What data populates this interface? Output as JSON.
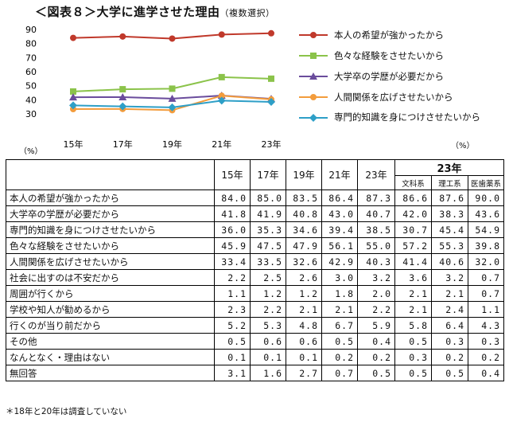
{
  "title": "＜図表８＞大学に進学させた理由",
  "title_note": "（複数選択）",
  "pct_left": "（%）",
  "pct_right": "（%）",
  "footnote": "＊18年と20年は調査していない",
  "chart_data": {
    "type": "line",
    "x": [
      "15年",
      "17年",
      "19年",
      "21年",
      "23年"
    ],
    "ylim": [
      30,
      90
    ],
    "yticks": [
      30,
      40,
      50,
      60,
      70,
      80,
      90
    ],
    "grid": false,
    "legend_position": "right",
    "series": [
      {
        "name": "本人の希望が強かったから",
        "values": [
          84.0,
          85.0,
          83.5,
          86.4,
          87.3
        ],
        "color": "#c0392b",
        "marker": "circle"
      },
      {
        "name": "色々な経験をさせたいから",
        "values": [
          45.9,
          47.5,
          47.9,
          56.1,
          55.0
        ],
        "color": "#8bc34a",
        "marker": "square"
      },
      {
        "name": "大学卒の学歴が必要だから",
        "values": [
          41.8,
          41.9,
          40.8,
          43.0,
          40.7
        ],
        "color": "#6a4c9c",
        "marker": "triangle"
      },
      {
        "name": "人間関係を広げさせたいから",
        "values": [
          33.4,
          33.5,
          32.6,
          42.9,
          40.3
        ],
        "color": "#f39c3c",
        "marker": "circle"
      },
      {
        "name": "専門的知識を身につけさせたいから",
        "values": [
          36.0,
          35.3,
          34.6,
          39.4,
          38.5
        ],
        "color": "#2e9fc7",
        "marker": "diamond"
      }
    ]
  },
  "table": {
    "headers": [
      "15年",
      "17年",
      "19年",
      "21年",
      "23年"
    ],
    "group_header": "23年",
    "sub_headers": [
      "文科系",
      "理工系",
      "医歯薬系"
    ],
    "rows": [
      {
        "label": "本人の希望が強かったから",
        "values": [
          "84.0",
          "85.0",
          "83.5",
          "86.4",
          "87.3",
          "86.6",
          "87.6",
          "90.0"
        ]
      },
      {
        "label": "大学卒の学歴が必要だから",
        "values": [
          "41.8",
          "41.9",
          "40.8",
          "43.0",
          "40.7",
          "42.0",
          "38.3",
          "43.6"
        ]
      },
      {
        "label": "専門的知識を身につけさせたいから",
        "values": [
          "36.0",
          "35.3",
          "34.6",
          "39.4",
          "38.5",
          "30.7",
          "45.4",
          "54.9"
        ]
      },
      {
        "label": "色々な経験をさせたいから",
        "values": [
          "45.9",
          "47.5",
          "47.9",
          "56.1",
          "55.0",
          "57.2",
          "55.3",
          "39.8"
        ]
      },
      {
        "label": "人間関係を広げさせたいから",
        "values": [
          "33.4",
          "33.5",
          "32.6",
          "42.9",
          "40.3",
          "41.4",
          "40.6",
          "32.0"
        ]
      },
      {
        "label": "社会に出すのは不安だから",
        "values": [
          "2.2",
          "2.5",
          "2.6",
          "3.0",
          "3.2",
          "3.6",
          "3.2",
          "0.7"
        ]
      },
      {
        "label": "周囲が行くから",
        "values": [
          "1.1",
          "1.2",
          "1.2",
          "1.8",
          "2.0",
          "2.1",
          "2.1",
          "0.7"
        ]
      },
      {
        "label": "学校や知人が勧めるから",
        "values": [
          "2.3",
          "2.2",
          "2.1",
          "2.1",
          "2.2",
          "2.1",
          "2.4",
          "1.1"
        ]
      },
      {
        "label": "行くのが当り前だから",
        "values": [
          "5.2",
          "5.3",
          "4.8",
          "6.7",
          "5.9",
          "5.8",
          "6.4",
          "4.3"
        ]
      },
      {
        "label": "その他",
        "values": [
          "0.5",
          "0.6",
          "0.6",
          "0.5",
          "0.4",
          "0.5",
          "0.3",
          "0.3"
        ]
      },
      {
        "label": "なんとなく・理由はない",
        "values": [
          "0.1",
          "0.1",
          "0.1",
          "0.2",
          "0.2",
          "0.3",
          "0.2",
          "0.2"
        ]
      },
      {
        "label": "無回答",
        "values": [
          "3.1",
          "1.6",
          "2.7",
          "0.7",
          "0.5",
          "0.5",
          "0.5",
          "0.4"
        ]
      }
    ]
  }
}
